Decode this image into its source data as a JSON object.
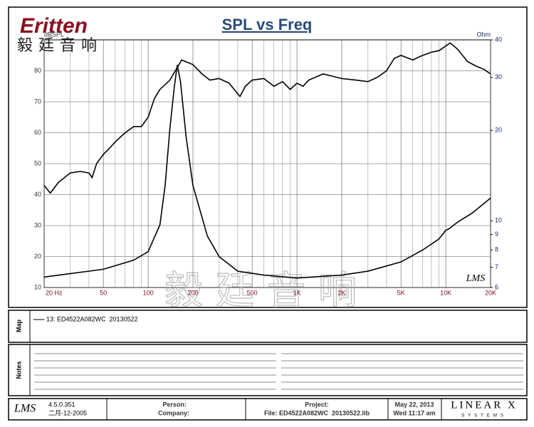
{
  "header": {
    "logo": "Eritten",
    "logo_cn": "毅廷音响",
    "watermark": "毅廷音响"
  },
  "chart_data": {
    "type": "line",
    "title": "SPL vs Freq",
    "y_label": "dBSPL",
    "y2_label": "Ohm",
    "badge": "LMS",
    "xscale": "log",
    "xlim": [
      20,
      20000
    ],
    "xticks": [
      {
        "value": 20,
        "label": "20 Hz"
      },
      50,
      100,
      200,
      500,
      {
        "value": 1000,
        "label": "1K"
      },
      {
        "value": 2000,
        "label": "2K"
      },
      {
        "value": 5000,
        "label": "5K"
      },
      {
        "value": 10000,
        "label": "10K"
      },
      {
        "value": 20000,
        "label": "20K"
      }
    ],
    "x_minor_grid": [
      30,
      40,
      60,
      70,
      80,
      90,
      300,
      400,
      600,
      700,
      800,
      900,
      3000,
      4000,
      6000,
      7000,
      8000,
      9000
    ],
    "ylim": [
      10,
      90
    ],
    "yticks": [
      10,
      20,
      30,
      40,
      50,
      60,
      70,
      80
    ],
    "y2scale": "log",
    "y2lim": [
      6,
      40
    ],
    "y2ticks": [
      6,
      7,
      8,
      9,
      10,
      20,
      30,
      40
    ],
    "grid": true,
    "series": [
      {
        "color": "#000000",
        "x": [
          20,
          22,
          25,
          30,
          35,
          40,
          42,
          45,
          50,
          55,
          60,
          70,
          80,
          90,
          100,
          110,
          120,
          140,
          168,
          200,
          230,
          260,
          300,
          350,
          414,
          450,
          500,
          600,
          700,
          800,
          900,
          1000,
          1100,
          1200,
          1500,
          2000,
          2500,
          3000,
          3500,
          4000,
          4500,
          5000,
          6000,
          7000,
          8000,
          9000,
          10700,
          12000,
          14000,
          16000,
          18000,
          20000
        ],
        "values": [
          43,
          40.5,
          44,
          47,
          47.5,
          47,
          45.5,
          50,
          53,
          55,
          57,
          60,
          62,
          62,
          65,
          71,
          74,
          77,
          83.5,
          82,
          79,
          77,
          77.5,
          76,
          71.7,
          75,
          77,
          77.5,
          75,
          76.5,
          74,
          76,
          75,
          77,
          79,
          77.5,
          77,
          76.5,
          78,
          80,
          84,
          85,
          83.5,
          85,
          86,
          86.5,
          89,
          87,
          83,
          81.5,
          80.5,
          79
        ]
      },
      {
        "color": "#000000",
        "axis": "y2",
        "x": [
          20,
          50,
          80,
          100,
          120,
          130,
          140,
          150,
          157,
          165,
          180,
          200,
          250,
          300,
          400,
          600,
          1000,
          2000,
          3000,
          5000,
          7000,
          9000,
          10000,
          10500,
          12000,
          15000,
          20000
        ],
        "values": [
          6.5,
          6.9,
          7.4,
          7.9,
          9.7,
          13.1,
          20.3,
          28,
          33,
          29,
          19,
          13.1,
          8.9,
          7.6,
          6.8,
          6.6,
          6.45,
          6.6,
          6.8,
          7.3,
          8.0,
          8.7,
          9.3,
          9.4,
          9.9,
          10.6,
          11.9
        ]
      }
    ]
  },
  "map": {
    "label": "Map",
    "entry": "13: ED4522A082WC  20130522"
  },
  "notes": {
    "label": "Notes"
  },
  "footer": {
    "logo": "LMS",
    "version": "4.5.0.351",
    "build_date": "二月-12-2005",
    "person": "Person:",
    "company": "Company:",
    "project": "Project:",
    "file": "File: ED4522A082WC  20130522.lib",
    "date": "May 22, 2013",
    "time": "Wed 11:17 am",
    "brand": "LINEAR X",
    "brand_sub": "SYSTEMS"
  }
}
